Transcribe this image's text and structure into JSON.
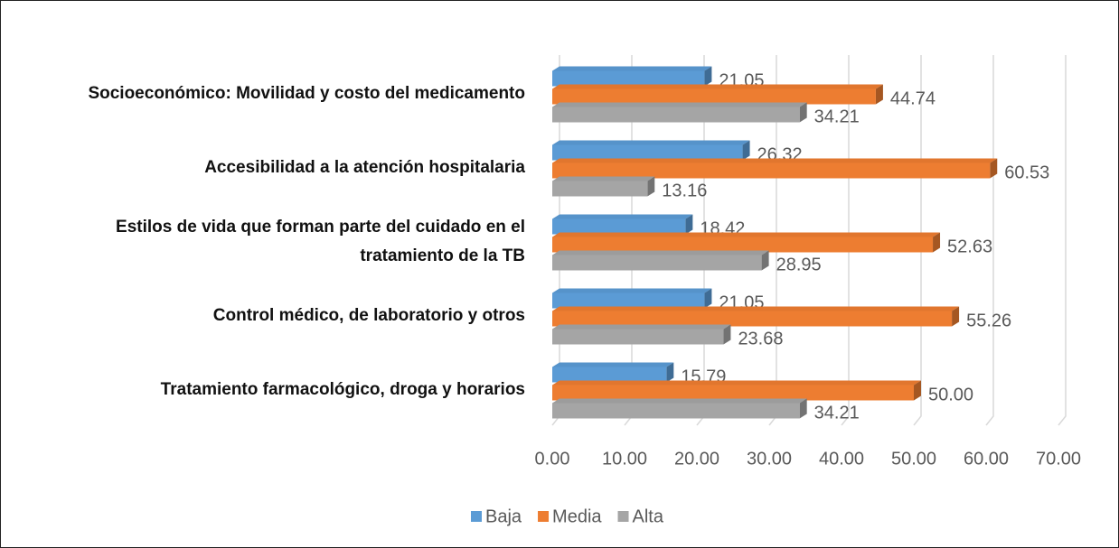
{
  "chart_data": {
    "type": "bar",
    "orientation": "horizontal",
    "categories": [
      "Socioeconómico: Movilidad y costo del medicamento",
      "Accesibilidad a la atención hospitalaria",
      "Estilos de vida que forman parte del cuidado en el tratamiento de la TB",
      "Control médico, de laboratorio y otros",
      "Tratamiento farmacológico,   droga y horarios"
    ],
    "series": [
      {
        "name": "Baja",
        "color": "#5b9bd5",
        "values": [
          21.05,
          26.32,
          18.42,
          21.05,
          15.79
        ],
        "value_labels": [
          "21.05",
          "26.32",
          "18.42",
          "21.05",
          "15.79"
        ]
      },
      {
        "name": "Media",
        "color": "#ed7d31",
        "values": [
          44.74,
          60.53,
          52.63,
          55.26,
          50.0
        ],
        "value_labels": [
          "44.74",
          "60.53",
          "52.63",
          "55.26",
          "50.00"
        ]
      },
      {
        "name": "Alta",
        "color": "#a5a5a5",
        "values": [
          34.21,
          13.16,
          28.95,
          23.68,
          34.21
        ],
        "value_labels": [
          "34.21",
          "13.16",
          "28.95",
          "23.68",
          "34.21"
        ]
      }
    ],
    "xlim": [
      0,
      70
    ],
    "xticks": [
      {
        "value": 0,
        "label": "0.00"
      },
      {
        "value": 10,
        "label": "10.00"
      },
      {
        "value": 20,
        "label": "20.00"
      },
      {
        "value": 30,
        "label": "30.00"
      },
      {
        "value": 40,
        "label": "40.00"
      },
      {
        "value": 50,
        "label": "50.00"
      },
      {
        "value": 60,
        "label": "60.00"
      },
      {
        "value": 70,
        "label": "70.00"
      }
    ],
    "grid": true,
    "legend": "bottom"
  }
}
